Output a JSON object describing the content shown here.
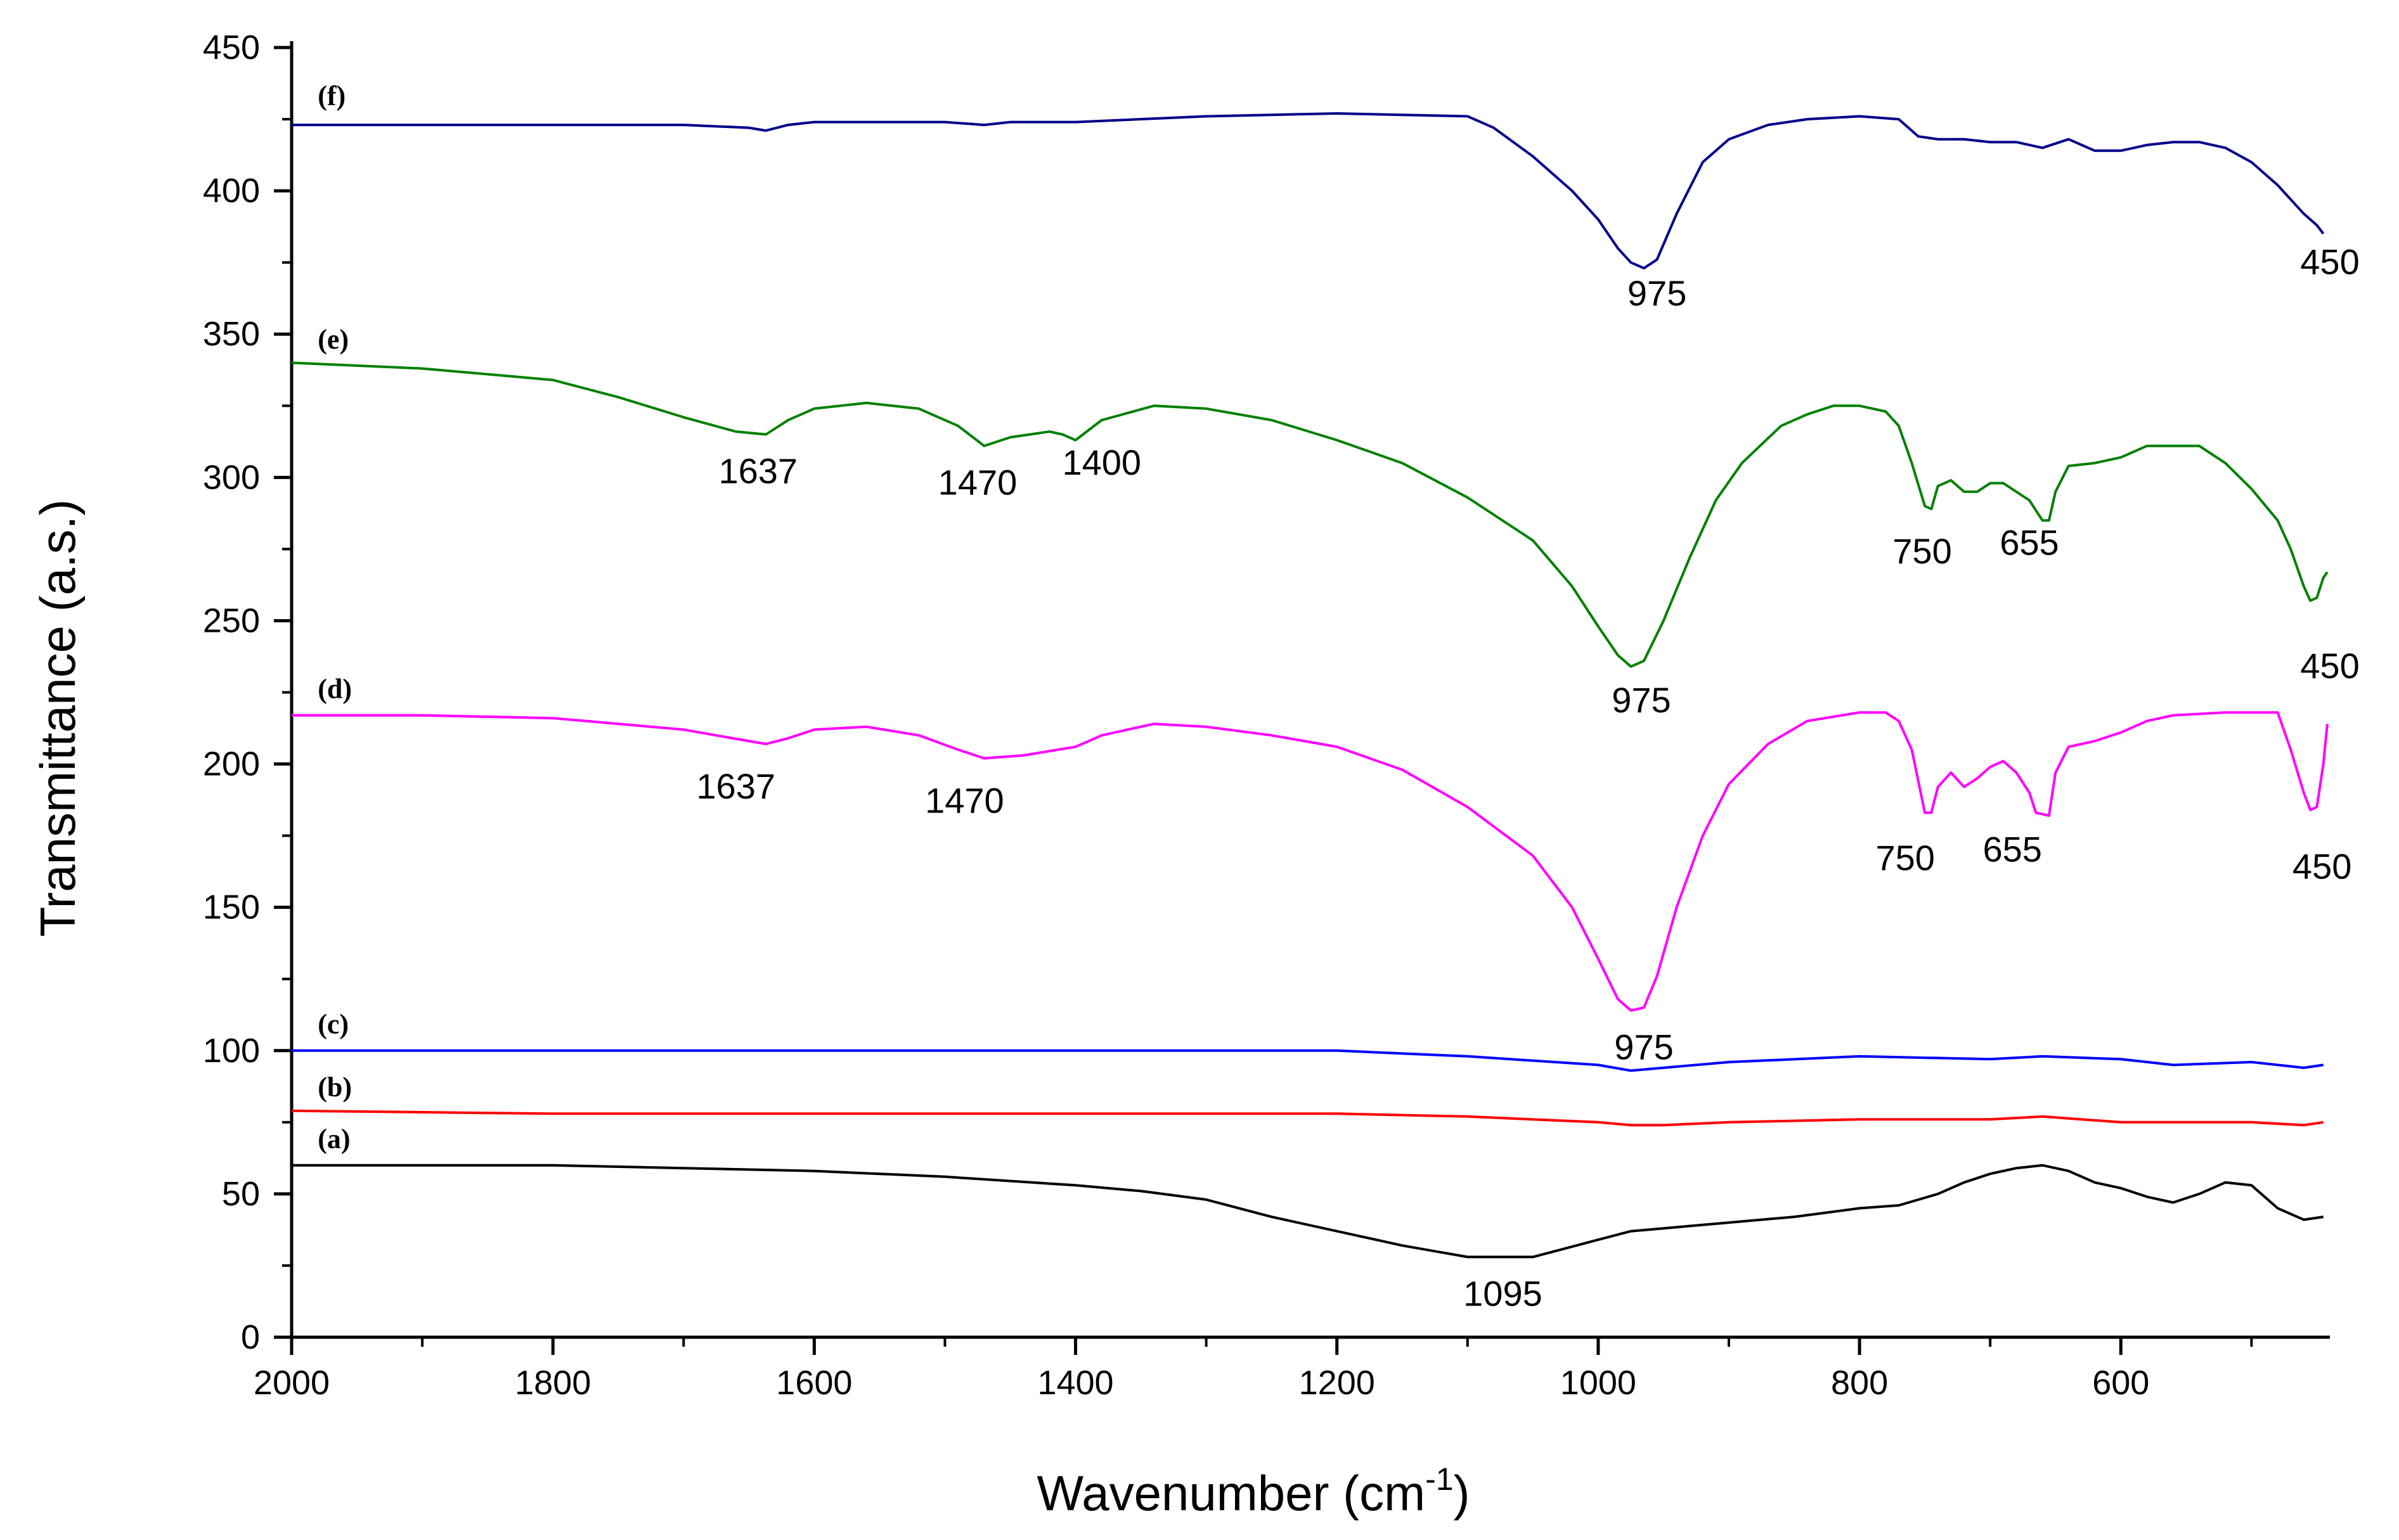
{
  "chart_data": {
    "type": "line",
    "title": "",
    "xlabel": "Wavenumber (cm",
    "xlabel_sup": "-1",
    "xlabel_close": ")",
    "ylabel": "Transmittance (a.s.)",
    "xlim": [
      2000,
      440
    ],
    "ylim": [
      0,
      450
    ],
    "xticks": [
      2000,
      1800,
      1600,
      1400,
      1200,
      1000,
      800,
      600
    ],
    "yticks": [
      0,
      50,
      100,
      150,
      200,
      250,
      300,
      350,
      400,
      450
    ],
    "series": [
      {
        "name": "(a)",
        "color": "#000000",
        "points": [
          [
            2000,
            60
          ],
          [
            1900,
            60
          ],
          [
            1800,
            60
          ],
          [
            1700,
            59
          ],
          [
            1600,
            58
          ],
          [
            1500,
            56
          ],
          [
            1400,
            53
          ],
          [
            1350,
            51
          ],
          [
            1300,
            48
          ],
          [
            1250,
            42
          ],
          [
            1200,
            37
          ],
          [
            1150,
            32
          ],
          [
            1100,
            28
          ],
          [
            1050,
            28
          ],
          [
            1000,
            34
          ],
          [
            975,
            37
          ],
          [
            950,
            38
          ],
          [
            900,
            40
          ],
          [
            850,
            42
          ],
          [
            800,
            45
          ],
          [
            770,
            46
          ],
          [
            740,
            50
          ],
          [
            720,
            54
          ],
          [
            700,
            57
          ],
          [
            680,
            59
          ],
          [
            660,
            60
          ],
          [
            640,
            58
          ],
          [
            620,
            54
          ],
          [
            600,
            52
          ],
          [
            580,
            49
          ],
          [
            560,
            47
          ],
          [
            540,
            50
          ],
          [
            520,
            54
          ],
          [
            500,
            53
          ],
          [
            480,
            45
          ],
          [
            460,
            41
          ],
          [
            445,
            42
          ]
        ]
      },
      {
        "name": "(b)",
        "color": "#ff0000",
        "points": [
          [
            2000,
            79
          ],
          [
            1800,
            78
          ],
          [
            1600,
            78
          ],
          [
            1400,
            78
          ],
          [
            1200,
            78
          ],
          [
            1100,
            77
          ],
          [
            1000,
            75
          ],
          [
            975,
            74
          ],
          [
            950,
            74
          ],
          [
            900,
            75
          ],
          [
            800,
            76
          ],
          [
            700,
            76
          ],
          [
            660,
            77
          ],
          [
            600,
            75
          ],
          [
            500,
            75
          ],
          [
            460,
            74
          ],
          [
            445,
            75
          ]
        ]
      },
      {
        "name": "(c)",
        "color": "#0000ff",
        "points": [
          [
            2000,
            100
          ],
          [
            1800,
            100
          ],
          [
            1600,
            100
          ],
          [
            1400,
            100
          ],
          [
            1200,
            100
          ],
          [
            1100,
            98
          ],
          [
            1000,
            95
          ],
          [
            975,
            93
          ],
          [
            950,
            94
          ],
          [
            900,
            96
          ],
          [
            800,
            98
          ],
          [
            700,
            97
          ],
          [
            660,
            98
          ],
          [
            600,
            97
          ],
          [
            560,
            95
          ],
          [
            500,
            96
          ],
          [
            460,
            94
          ],
          [
            445,
            95
          ]
        ]
      },
      {
        "name": "(d)",
        "color": "#ff00ff",
        "points": [
          [
            2000,
            217
          ],
          [
            1900,
            217
          ],
          [
            1800,
            216
          ],
          [
            1700,
            212
          ],
          [
            1650,
            208
          ],
          [
            1637,
            207
          ],
          [
            1620,
            209
          ],
          [
            1600,
            212
          ],
          [
            1560,
            213
          ],
          [
            1520,
            210
          ],
          [
            1490,
            205
          ],
          [
            1470,
            202
          ],
          [
            1440,
            203
          ],
          [
            1400,
            206
          ],
          [
            1380,
            210
          ],
          [
            1340,
            214
          ],
          [
            1300,
            213
          ],
          [
            1250,
            210
          ],
          [
            1200,
            206
          ],
          [
            1150,
            198
          ],
          [
            1100,
            185
          ],
          [
            1050,
            168
          ],
          [
            1020,
            150
          ],
          [
            1000,
            132
          ],
          [
            985,
            118
          ],
          [
            975,
            114
          ],
          [
            965,
            115
          ],
          [
            955,
            126
          ],
          [
            940,
            150
          ],
          [
            920,
            175
          ],
          [
            900,
            193
          ],
          [
            870,
            207
          ],
          [
            840,
            215
          ],
          [
            800,
            218
          ],
          [
            780,
            218
          ],
          [
            770,
            215
          ],
          [
            760,
            205
          ],
          [
            750,
            183
          ],
          [
            745,
            183
          ],
          [
            740,
            192
          ],
          [
            730,
            197
          ],
          [
            720,
            192
          ],
          [
            710,
            195
          ],
          [
            700,
            199
          ],
          [
            690,
            201
          ],
          [
            680,
            197
          ],
          [
            670,
            190
          ],
          [
            665,
            183
          ],
          [
            655,
            182
          ],
          [
            650,
            197
          ],
          [
            640,
            206
          ],
          [
            620,
            208
          ],
          [
            600,
            211
          ],
          [
            580,
            215
          ],
          [
            560,
            217
          ],
          [
            520,
            218
          ],
          [
            480,
            218
          ],
          [
            470,
            205
          ],
          [
            460,
            190
          ],
          [
            455,
            184
          ],
          [
            450,
            185
          ],
          [
            445,
            200
          ],
          [
            442,
            214
          ]
        ]
      },
      {
        "name": "(e)",
        "color": "#008000",
        "points": [
          [
            2000,
            340
          ],
          [
            1900,
            338
          ],
          [
            1800,
            334
          ],
          [
            1750,
            328
          ],
          [
            1700,
            321
          ],
          [
            1660,
            316
          ],
          [
            1637,
            315
          ],
          [
            1620,
            320
          ],
          [
            1600,
            324
          ],
          [
            1560,
            326
          ],
          [
            1520,
            324
          ],
          [
            1490,
            318
          ],
          [
            1470,
            311
          ],
          [
            1450,
            314
          ],
          [
            1420,
            316
          ],
          [
            1410,
            315
          ],
          [
            1400,
            313
          ],
          [
            1380,
            320
          ],
          [
            1340,
            325
          ],
          [
            1300,
            324
          ],
          [
            1250,
            320
          ],
          [
            1200,
            313
          ],
          [
            1150,
            305
          ],
          [
            1100,
            293
          ],
          [
            1050,
            278
          ],
          [
            1020,
            262
          ],
          [
            1000,
            248
          ],
          [
            985,
            238
          ],
          [
            975,
            234
          ],
          [
            965,
            236
          ],
          [
            950,
            250
          ],
          [
            930,
            272
          ],
          [
            910,
            292
          ],
          [
            890,
            305
          ],
          [
            860,
            318
          ],
          [
            840,
            322
          ],
          [
            820,
            325
          ],
          [
            800,
            325
          ],
          [
            780,
            323
          ],
          [
            770,
            318
          ],
          [
            760,
            305
          ],
          [
            750,
            290
          ],
          [
            745,
            289
          ],
          [
            740,
            297
          ],
          [
            730,
            299
          ],
          [
            720,
            295
          ],
          [
            710,
            295
          ],
          [
            700,
            298
          ],
          [
            690,
            298
          ],
          [
            680,
            295
          ],
          [
            670,
            292
          ],
          [
            660,
            285
          ],
          [
            655,
            285
          ],
          [
            650,
            295
          ],
          [
            640,
            304
          ],
          [
            620,
            305
          ],
          [
            600,
            307
          ],
          [
            580,
            311
          ],
          [
            560,
            311
          ],
          [
            540,
            311
          ],
          [
            520,
            305
          ],
          [
            500,
            296
          ],
          [
            480,
            285
          ],
          [
            470,
            275
          ],
          [
            460,
            262
          ],
          [
            455,
            257
          ],
          [
            450,
            258
          ],
          [
            445,
            265
          ],
          [
            442,
            267
          ]
        ]
      },
      {
        "name": "(f)",
        "color": "#00008b",
        "points": [
          [
            2000,
            423
          ],
          [
            1900,
            423
          ],
          [
            1800,
            423
          ],
          [
            1700,
            423
          ],
          [
            1650,
            422
          ],
          [
            1637,
            421
          ],
          [
            1620,
            423
          ],
          [
            1600,
            424
          ],
          [
            1500,
            424
          ],
          [
            1470,
            423
          ],
          [
            1450,
            424
          ],
          [
            1400,
            424
          ],
          [
            1300,
            426
          ],
          [
            1200,
            427
          ],
          [
            1100,
            426
          ],
          [
            1080,
            422
          ],
          [
            1050,
            412
          ],
          [
            1020,
            400
          ],
          [
            1000,
            390
          ],
          [
            985,
            380
          ],
          [
            975,
            375
          ],
          [
            965,
            373
          ],
          [
            955,
            376
          ],
          [
            940,
            392
          ],
          [
            920,
            410
          ],
          [
            900,
            418
          ],
          [
            870,
            423
          ],
          [
            840,
            425
          ],
          [
            800,
            426
          ],
          [
            770,
            425
          ],
          [
            755,
            419
          ],
          [
            740,
            418
          ],
          [
            720,
            418
          ],
          [
            700,
            417
          ],
          [
            680,
            417
          ],
          [
            660,
            415
          ],
          [
            640,
            418
          ],
          [
            620,
            414
          ],
          [
            600,
            414
          ],
          [
            580,
            416
          ],
          [
            560,
            417
          ],
          [
            540,
            417
          ],
          [
            520,
            415
          ],
          [
            500,
            410
          ],
          [
            480,
            402
          ],
          [
            460,
            392
          ],
          [
            450,
            388
          ],
          [
            445,
            385
          ]
        ]
      }
    ],
    "series_labels": [
      {
        "text": "(a)",
        "x": 1980,
        "y": 66
      },
      {
        "text": "(b)",
        "x": 1980,
        "y": 84
      },
      {
        "text": "(c)",
        "x": 1980,
        "y": 106
      },
      {
        "text": "(d)",
        "x": 1980,
        "y": 223
      },
      {
        "text": "(e)",
        "x": 1980,
        "y": 345
      },
      {
        "text": "(f)",
        "x": 1980,
        "y": 430
      }
    ],
    "annotations": [
      {
        "text": "975",
        "x": 955,
        "y": 360
      },
      {
        "text": "450",
        "x": 440,
        "y": 371
      },
      {
        "text": "1637",
        "x": 1643,
        "y": 298
      },
      {
        "text": "1470",
        "x": 1475,
        "y": 294
      },
      {
        "text": "1400",
        "x": 1380,
        "y": 301
      },
      {
        "text": "750",
        "x": 752,
        "y": 270
      },
      {
        "text": "655",
        "x": 670,
        "y": 273
      },
      {
        "text": "975",
        "x": 967,
        "y": 218
      },
      {
        "text": "450",
        "x": 440,
        "y": 230
      },
      {
        "text": "1637",
        "x": 1660,
        "y": 188
      },
      {
        "text": "1470",
        "x": 1485,
        "y": 183
      },
      {
        "text": "750",
        "x": 765,
        "y": 163
      },
      {
        "text": "655",
        "x": 683,
        "y": 166
      },
      {
        "text": "450",
        "x": 446,
        "y": 160
      },
      {
        "text": "975",
        "x": 965,
        "y": 97
      },
      {
        "text": "1095",
        "x": 1073,
        "y": 11
      }
    ]
  }
}
